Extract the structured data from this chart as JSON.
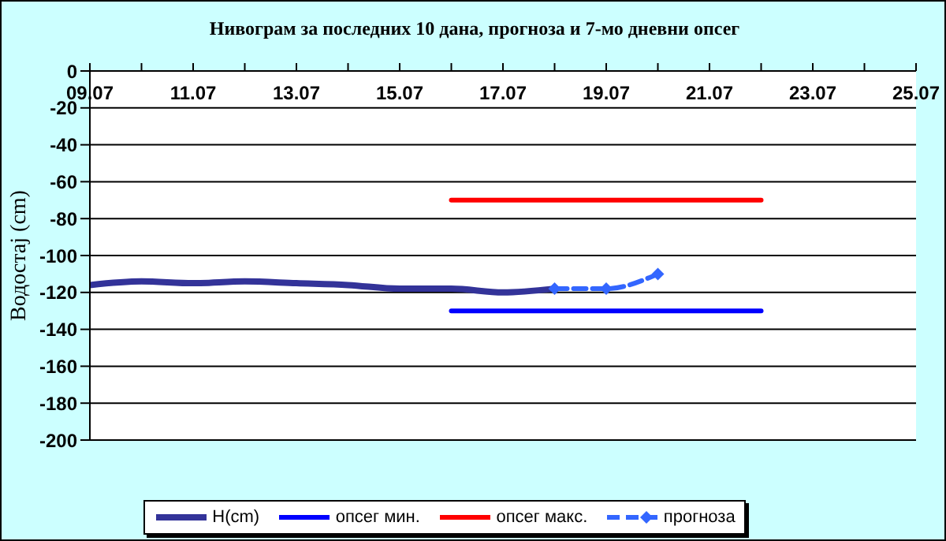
{
  "chart_data": {
    "type": "line",
    "title": "Нивограм за последних 10 дана, прогноза и 7-мо дневни опсег",
    "ylabel": "Водостај (cm)",
    "xlim": [
      "--07-09",
      "--07-25"
    ],
    "xticks": [
      {
        "value": "--07-09",
        "label": "09.07"
      },
      {
        "value": "--07-10",
        "label": null
      },
      {
        "value": "--07-11",
        "label": "11.07"
      },
      {
        "value": "--07-12",
        "label": null
      },
      {
        "value": "--07-13",
        "label": "13.07"
      },
      {
        "value": "--07-14",
        "label": null
      },
      {
        "value": "--07-15",
        "label": "15.07"
      },
      {
        "value": "--07-16",
        "label": null
      },
      {
        "value": "--07-17",
        "label": "17.07"
      },
      {
        "value": "--07-18",
        "label": null
      },
      {
        "value": "--07-19",
        "label": "19.07"
      },
      {
        "value": "--07-20",
        "label": null
      },
      {
        "value": "--07-21",
        "label": "21.07"
      },
      {
        "value": "--07-22",
        "label": null
      },
      {
        "value": "--07-23",
        "label": "23.07"
      },
      {
        "value": "--07-24",
        "label": null
      },
      {
        "value": "--07-25",
        "label": "25.07"
      }
    ],
    "ylim": [
      -200,
      0
    ],
    "yticks": [
      -200,
      -180,
      -160,
      -140,
      -120,
      -100,
      -80,
      -60,
      -40,
      -20,
      0
    ],
    "grid": "y",
    "legend": "bottom",
    "series": [
      {
        "name": "H(cm)",
        "color": "#333399",
        "x": [
          "--07-09",
          "--07-10",
          "--07-11",
          "--07-12",
          "--07-13",
          "--07-14",
          "--07-15",
          "--07-16",
          "--07-17",
          "--07-18"
        ],
        "values": [
          -116,
          -114,
          -115,
          -114,
          -115,
          -116,
          -118,
          -118,
          -120,
          -118
        ]
      },
      {
        "name": "опсег мин.",
        "color": "#0000ff",
        "x": [
          "--07-16",
          "--07-22"
        ],
        "values": [
          -130,
          -130
        ]
      },
      {
        "name": "опсег макс.",
        "color": "#ff0000",
        "x": [
          "--07-16",
          "--07-22"
        ],
        "values": [
          -70,
          -70
        ]
      },
      {
        "name": "прогноза",
        "color": "#3366ff",
        "x": [
          "--07-18",
          "--07-19",
          "--07-20"
        ],
        "values": [
          -118,
          -118,
          -110
        ],
        "marker": "diamond",
        "line_style": "dashed"
      }
    ]
  }
}
